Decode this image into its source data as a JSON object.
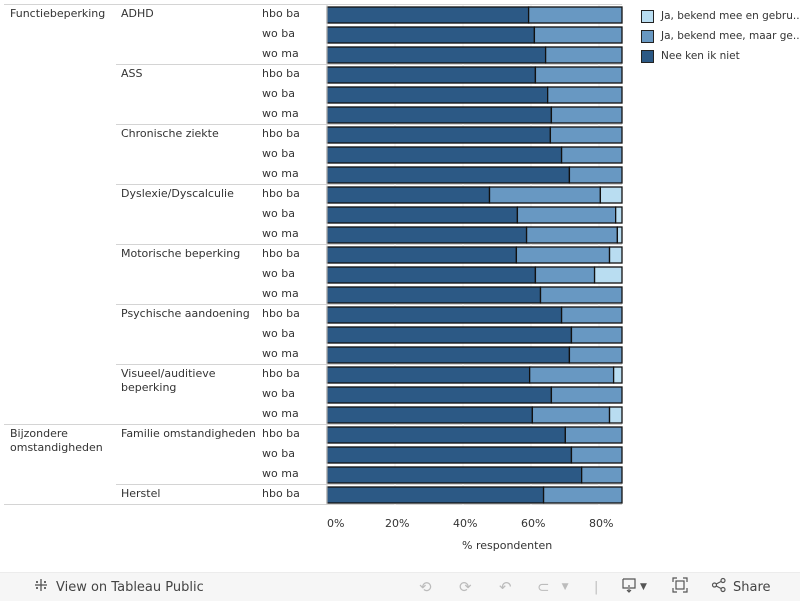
{
  "chart_data": {
    "type": "bar",
    "orientation": "horizontal",
    "stacked": true,
    "xlabel": "% respondenten",
    "xlim": [
      0,
      87
    ],
    "x_ticks": [
      "0%",
      "20%",
      "40%",
      "60%",
      "80%"
    ],
    "x_tick_values": [
      0,
      20,
      40,
      60,
      80
    ],
    "grid": true,
    "legend_position": "right",
    "legend": [
      {
        "name": "Ja, bekend mee en gebru...",
        "color": "#b9ddf1"
      },
      {
        "name": "Ja, bekend mee, maar ge...",
        "color": "#6898c2"
      },
      {
        "name": "Nee ken ik niet",
        "color": "#2c5985"
      }
    ],
    "series_order": [
      "Nee ken ik niet",
      "Ja, bekend mee, maar ge...",
      "Ja, bekend mee en gebru..."
    ],
    "groups": [
      {
        "name": "Functiebeperking",
        "subgroups": [
          {
            "name": "ADHD",
            "rows": [
              {
                "level": "hbo ba",
                "values": [
                  59.3,
                  40.7,
                  0
                ]
              },
              {
                "level": "wo ba",
                "values": [
                  61.0,
                  39.0,
                  0
                ]
              },
              {
                "level": "wo ma",
                "values": [
                  64.3,
                  35.7,
                  0
                ]
              }
            ]
          },
          {
            "name": "ASS",
            "rows": [
              {
                "level": "hbo ba",
                "values": [
                  61.3,
                  38.7,
                  0
                ]
              },
              {
                "level": "wo ba",
                "values": [
                  64.9,
                  35.1,
                  0
                ]
              },
              {
                "level": "wo ma",
                "values": [
                  66.0,
                  34.0,
                  0
                ]
              }
            ]
          },
          {
            "name": "Chronische ziekte",
            "rows": [
              {
                "level": "hbo ba",
                "values": [
                  65.7,
                  34.3,
                  0
                ]
              },
              {
                "level": "wo ba",
                "values": [
                  69.0,
                  31.0,
                  0
                ]
              },
              {
                "level": "wo ma",
                "values": [
                  71.3,
                  28.7,
                  0
                ]
              }
            ]
          },
          {
            "name": "Dyslexie/Dyscalculie",
            "rows": [
              {
                "level": "hbo ba",
                "values": [
                  47.8,
                  32.6,
                  19.6
                ]
              },
              {
                "level": "wo ba",
                "values": [
                  56.0,
                  28.9,
                  15.1
                ]
              },
              {
                "level": "wo ma",
                "values": [
                  58.7,
                  26.7,
                  14.6
                ]
              }
            ]
          },
          {
            "name": "Motorische beperking",
            "rows": [
              {
                "level": "hbo ba",
                "values": [
                  55.7,
                  27.4,
                  16.9
                ]
              },
              {
                "level": "wo ba",
                "values": [
                  61.3,
                  17.4,
                  21.3
                ]
              },
              {
                "level": "wo ma",
                "values": [
                  62.8,
                  37.2,
                  0
                ]
              }
            ]
          },
          {
            "name": "Psychische aandoening",
            "rows": [
              {
                "level": "hbo ba",
                "values": [
                  69.0,
                  31.0,
                  0
                ]
              },
              {
                "level": "wo ba",
                "values": [
                  71.9,
                  28.1,
                  0
                ]
              },
              {
                "level": "wo ma",
                "values": [
                  71.3,
                  28.7,
                  0
                ]
              }
            ]
          },
          {
            "name": "Visueel/auditieve beperking",
            "rows": [
              {
                "level": "hbo ba",
                "values": [
                  59.6,
                  24.7,
                  15.7
                ]
              },
              {
                "level": "wo ba",
                "values": [
                  66.0,
                  34.0,
                  0
                ]
              },
              {
                "level": "wo ma",
                "values": [
                  60.4,
                  22.7,
                  16.9
                ]
              }
            ]
          }
        ]
      },
      {
        "name": "Bijzondere omstandigheden",
        "subgroups": [
          {
            "name": "Familie omstandigheden",
            "rows": [
              {
                "level": "hbo ba",
                "values": [
                  70.1,
                  29.9,
                  0
                ]
              },
              {
                "level": "wo ba",
                "values": [
                  71.9,
                  28.1,
                  0
                ]
              },
              {
                "level": "wo ma",
                "values": [
                  74.9,
                  25.1,
                  0
                ]
              }
            ]
          },
          {
            "name": "Herstel",
            "rows": [
              {
                "level": "hbo ba",
                "values": [
                  63.7,
                  36.3,
                  0
                ]
              }
            ]
          }
        ]
      }
    ]
  },
  "footer": {
    "view_label": "View on Tableau Public",
    "share_label": "Share",
    "icons": [
      "tableau-logo-icon",
      "undo-icon",
      "redo-icon",
      "revert-icon",
      "refresh-icon",
      "download-icon",
      "fullscreen-icon",
      "share-icon"
    ]
  }
}
